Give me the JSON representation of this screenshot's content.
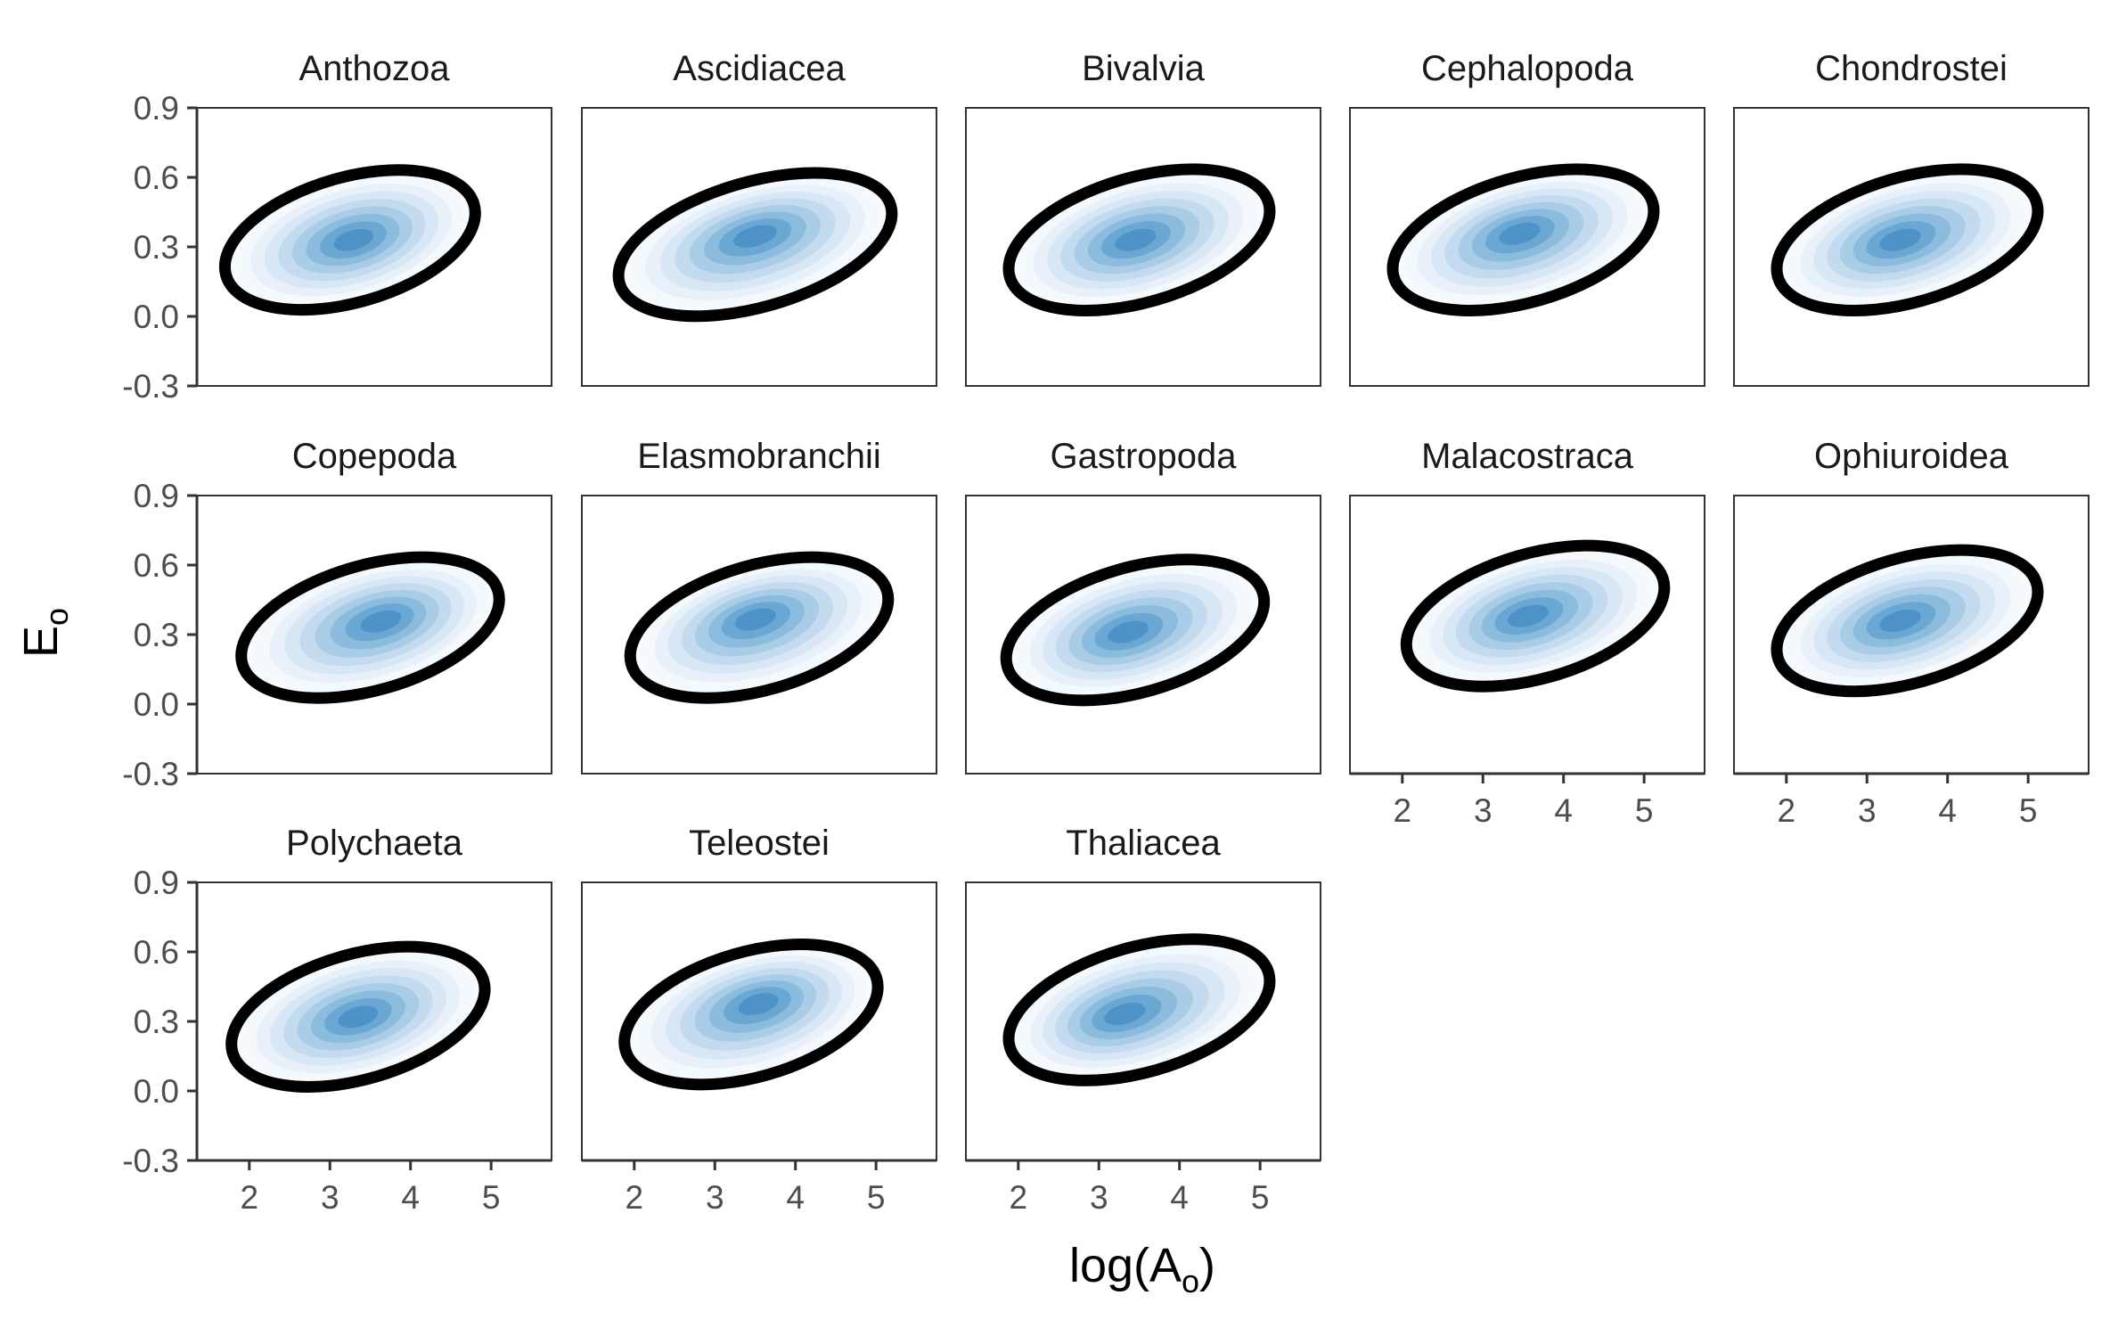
{
  "chart_data": {
    "type": "faceted density contour with ellipse",
    "xlabel": "log(A",
    "xlabel_sub": "o",
    "xlabel_close": ")",
    "ylabel": "E",
    "ylabel_sub": "o",
    "xlim": [
      1.35,
      5.75
    ],
    "ylim": [
      -0.3,
      0.9
    ],
    "xticks": [
      2,
      3,
      4,
      5
    ],
    "yticks": [
      -0.3,
      0.0,
      0.3,
      0.6,
      0.9
    ],
    "ytick_labels": [
      "-0.3",
      "0.0",
      "0.3",
      "0.6",
      "0.9"
    ],
    "grid": false,
    "fill_colors": [
      "#f4f9fd",
      "#e8f1fa",
      "#d8e7f5",
      "#c4dbef",
      "#a9cde6",
      "#8bbbdd",
      "#6aa7d3",
      "#4e93c8"
    ],
    "ellipse_color": "#000000",
    "panels": [
      {
        "title": "Anthozoa",
        "ellipse": {
          "cx": 3.25,
          "cy": 0.33,
          "rx": 1.6,
          "ry": 0.27,
          "angle_deg": 16
        },
        "peak": {
          "x": 3.3,
          "y": 0.33
        }
      },
      {
        "title": "Ascidiacea",
        "ellipse": {
          "cx": 3.5,
          "cy": 0.31,
          "rx": 1.75,
          "ry": 0.27,
          "angle_deg": 16
        },
        "peak": {
          "x": 3.5,
          "y": 0.35
        }
      },
      {
        "title": "Bivalvia",
        "ellipse": {
          "cx": 3.5,
          "cy": 0.33,
          "rx": 1.67,
          "ry": 0.27,
          "angle_deg": 16
        },
        "peak": {
          "x": 3.45,
          "y": 0.33
        }
      },
      {
        "title": "Cephalopoda",
        "ellipse": {
          "cx": 3.5,
          "cy": 0.33,
          "rx": 1.67,
          "ry": 0.27,
          "angle_deg": 16
        },
        "peak": {
          "x": 3.45,
          "y": 0.36
        }
      },
      {
        "title": "Chondrostei",
        "ellipse": {
          "cx": 3.5,
          "cy": 0.33,
          "rx": 1.67,
          "ry": 0.27,
          "angle_deg": 16
        },
        "peak": {
          "x": 3.4,
          "y": 0.33
        }
      },
      {
        "title": "Copepoda",
        "ellipse": {
          "cx": 3.5,
          "cy": 0.33,
          "rx": 1.65,
          "ry": 0.27,
          "angle_deg": 16
        },
        "peak": {
          "x": 3.65,
          "y": 0.36
        }
      },
      {
        "title": "Elasmobranchii",
        "ellipse": {
          "cx": 3.55,
          "cy": 0.33,
          "rx": 1.65,
          "ry": 0.27,
          "angle_deg": 16
        },
        "peak": {
          "x": 3.5,
          "y": 0.37
        }
      },
      {
        "title": "Gastropoda",
        "ellipse": {
          "cx": 3.45,
          "cy": 0.32,
          "rx": 1.65,
          "ry": 0.27,
          "angle_deg": 16
        },
        "peak": {
          "x": 3.35,
          "y": 0.31
        }
      },
      {
        "title": "Malacostraca",
        "ellipse": {
          "cx": 3.65,
          "cy": 0.38,
          "rx": 1.65,
          "ry": 0.27,
          "angle_deg": 16
        },
        "peak": {
          "x": 3.55,
          "y": 0.38
        }
      },
      {
        "title": "Ophiuroidea",
        "ellipse": {
          "cx": 3.5,
          "cy": 0.36,
          "rx": 1.67,
          "ry": 0.27,
          "angle_deg": 16
        },
        "peak": {
          "x": 3.4,
          "y": 0.36
        }
      },
      {
        "title": "Polychaeta",
        "ellipse": {
          "cx": 3.35,
          "cy": 0.32,
          "rx": 1.62,
          "ry": 0.27,
          "angle_deg": 16
        },
        "peak": {
          "x": 3.35,
          "y": 0.32
        }
      },
      {
        "title": "Teleostei",
        "ellipse": {
          "cx": 3.45,
          "cy": 0.33,
          "rx": 1.62,
          "ry": 0.27,
          "angle_deg": 16
        },
        "peak": {
          "x": 3.55,
          "y": 0.38
        }
      },
      {
        "title": "Thaliacea",
        "ellipse": {
          "cx": 3.5,
          "cy": 0.35,
          "rx": 1.67,
          "ry": 0.27,
          "angle_deg": 16
        },
        "peak": {
          "x": 3.3,
          "y": 0.33
        }
      }
    ]
  }
}
